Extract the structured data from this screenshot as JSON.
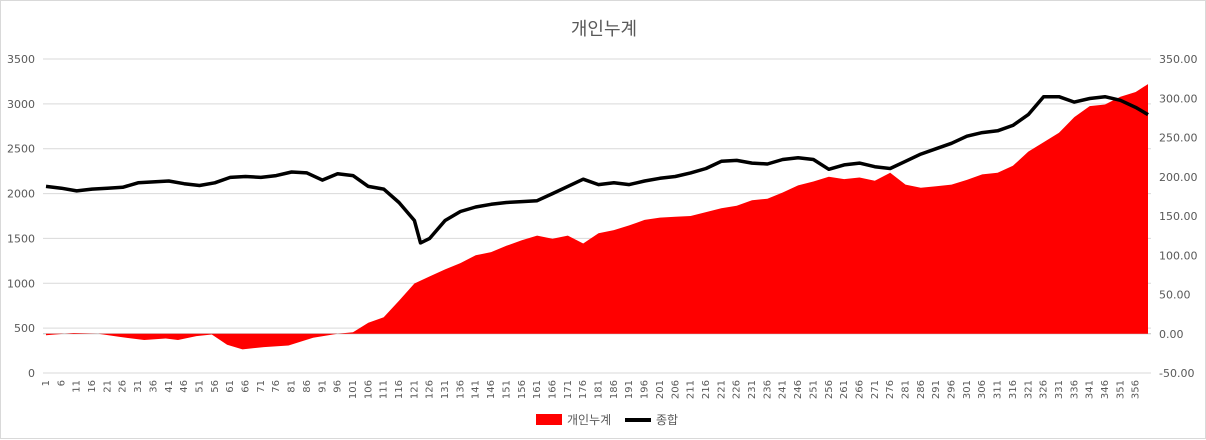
{
  "chart_data": {
    "type": "area+line",
    "title": "개인누계",
    "left_axis": {
      "min": 0,
      "max": 3500,
      "ticks": [
        "0",
        "500",
        "1000",
        "1500",
        "2000",
        "2500",
        "3000",
        "3500"
      ]
    },
    "right_axis": {
      "min": -50,
      "max": 350,
      "ticks": [
        "-50.00",
        "0.00",
        "50.00",
        "100.00",
        "150.00",
        "200.00",
        "250.00",
        "300.00",
        "350.00"
      ]
    },
    "x_range": [
      1,
      360
    ],
    "x_tick_labels": [
      "1",
      "6",
      "11",
      "16",
      "21",
      "26",
      "31",
      "36",
      "41",
      "46",
      "51",
      "56",
      "61",
      "66",
      "71",
      "76",
      "81",
      "86",
      "91",
      "96",
      "101",
      "106",
      "111",
      "116",
      "121",
      "126",
      "131",
      "136",
      "141",
      "146",
      "151",
      "156",
      "161",
      "166",
      "171",
      "176",
      "181",
      "186",
      "191",
      "196",
      "201",
      "206",
      "211",
      "216",
      "221",
      "226",
      "231",
      "236",
      "241",
      "246",
      "251",
      "256",
      "261",
      "266",
      "271",
      "276",
      "281",
      "286",
      "291",
      "296",
      "301",
      "306",
      "311",
      "316",
      "321",
      "326",
      "331",
      "336",
      "341",
      "346",
      "351",
      "356"
    ],
    "series": [
      {
        "name": "개인누계",
        "kind": "area",
        "axis": "right",
        "color": "#ff0000",
        "points": [
          [
            1,
            -2
          ],
          [
            10,
            1
          ],
          [
            18,
            0
          ],
          [
            25,
            -4
          ],
          [
            33,
            -8
          ],
          [
            40,
            -6
          ],
          [
            44,
            -8
          ],
          [
            50,
            -3
          ],
          [
            55,
            -1
          ],
          [
            60,
            -14
          ],
          [
            65,
            -20
          ],
          [
            72,
            -17
          ],
          [
            80,
            -15
          ],
          [
            88,
            -5
          ],
          [
            96,
            0
          ],
          [
            101,
            2
          ],
          [
            106,
            14
          ],
          [
            111,
            21
          ],
          [
            116,
            42
          ],
          [
            121,
            64
          ],
          [
            126,
            73
          ],
          [
            131,
            82
          ],
          [
            136,
            90
          ],
          [
            141,
            100
          ],
          [
            146,
            104
          ],
          [
            151,
            112
          ],
          [
            156,
            119
          ],
          [
            161,
            125
          ],
          [
            166,
            121
          ],
          [
            171,
            125
          ],
          [
            176,
            115
          ],
          [
            181,
            128
          ],
          [
            186,
            132
          ],
          [
            191,
            138
          ],
          [
            196,
            145
          ],
          [
            201,
            148
          ],
          [
            206,
            149
          ],
          [
            211,
            150
          ],
          [
            216,
            155
          ],
          [
            221,
            160
          ],
          [
            226,
            163
          ],
          [
            231,
            170
          ],
          [
            236,
            172
          ],
          [
            241,
            180
          ],
          [
            246,
            189
          ],
          [
            251,
            194
          ],
          [
            256,
            200
          ],
          [
            261,
            197
          ],
          [
            266,
            199
          ],
          [
            271,
            195
          ],
          [
            276,
            205
          ],
          [
            281,
            190
          ],
          [
            286,
            186
          ],
          [
            291,
            188
          ],
          [
            296,
            190
          ],
          [
            301,
            196
          ],
          [
            306,
            203
          ],
          [
            311,
            205
          ],
          [
            316,
            214
          ],
          [
            321,
            232
          ],
          [
            326,
            244
          ],
          [
            331,
            256
          ],
          [
            336,
            276
          ],
          [
            341,
            290
          ],
          [
            346,
            292
          ],
          [
            351,
            302
          ],
          [
            356,
            308
          ],
          [
            360,
            318
          ]
        ]
      },
      {
        "name": "종합",
        "kind": "line",
        "axis": "left",
        "color": "#000000",
        "points": [
          [
            1,
            2080
          ],
          [
            6,
            2060
          ],
          [
            11,
            2030
          ],
          [
            16,
            2050
          ],
          [
            21,
            2060
          ],
          [
            26,
            2070
          ],
          [
            31,
            2120
          ],
          [
            36,
            2130
          ],
          [
            41,
            2140
          ],
          [
            46,
            2110
          ],
          [
            51,
            2090
          ],
          [
            56,
            2120
          ],
          [
            61,
            2180
          ],
          [
            66,
            2190
          ],
          [
            71,
            2180
          ],
          [
            76,
            2200
          ],
          [
            81,
            2240
          ],
          [
            86,
            2230
          ],
          [
            91,
            2150
          ],
          [
            96,
            2220
          ],
          [
            101,
            2200
          ],
          [
            106,
            2080
          ],
          [
            111,
            2050
          ],
          [
            116,
            1900
          ],
          [
            121,
            1700
          ],
          [
            123,
            1450
          ],
          [
            126,
            1500
          ],
          [
            131,
            1700
          ],
          [
            136,
            1800
          ],
          [
            141,
            1850
          ],
          [
            146,
            1880
          ],
          [
            151,
            1900
          ],
          [
            156,
            1910
          ],
          [
            161,
            1920
          ],
          [
            166,
            2000
          ],
          [
            171,
            2080
          ],
          [
            176,
            2160
          ],
          [
            181,
            2100
          ],
          [
            186,
            2120
          ],
          [
            191,
            2100
          ],
          [
            196,
            2140
          ],
          [
            201,
            2170
          ],
          [
            206,
            2190
          ],
          [
            211,
            2230
          ],
          [
            216,
            2280
          ],
          [
            221,
            2360
          ],
          [
            226,
            2370
          ],
          [
            231,
            2340
          ],
          [
            236,
            2330
          ],
          [
            241,
            2380
          ],
          [
            246,
            2400
          ],
          [
            251,
            2380
          ],
          [
            256,
            2270
          ],
          [
            261,
            2320
          ],
          [
            266,
            2340
          ],
          [
            271,
            2300
          ],
          [
            276,
            2280
          ],
          [
            281,
            2360
          ],
          [
            286,
            2440
          ],
          [
            291,
            2500
          ],
          [
            296,
            2560
          ],
          [
            301,
            2640
          ],
          [
            306,
            2680
          ],
          [
            311,
            2700
          ],
          [
            316,
            2760
          ],
          [
            321,
            2880
          ],
          [
            326,
            3080
          ],
          [
            331,
            3080
          ],
          [
            336,
            3020
          ],
          [
            341,
            3060
          ],
          [
            346,
            3080
          ],
          [
            351,
            3040
          ],
          [
            356,
            2960
          ],
          [
            360,
            2880
          ]
        ]
      }
    ],
    "legend": {
      "position": "bottom"
    }
  }
}
